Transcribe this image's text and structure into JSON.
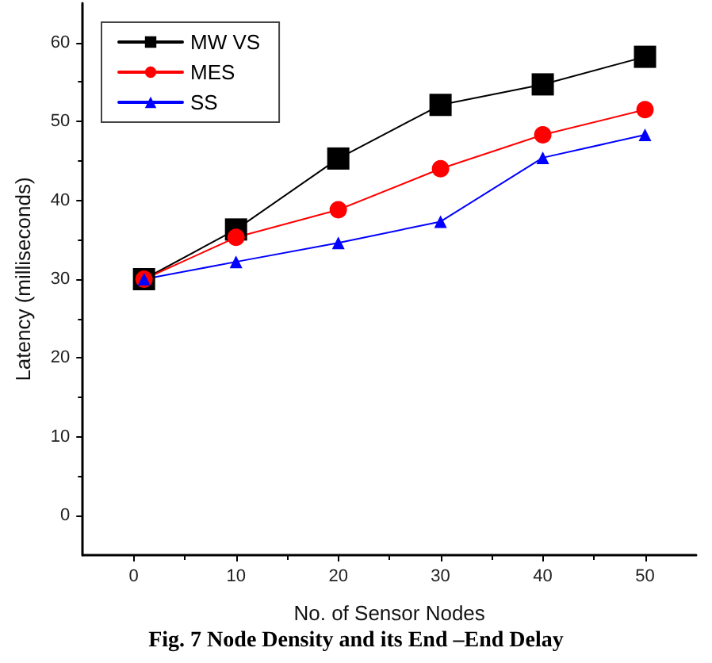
{
  "chart_data": {
    "type": "line",
    "title": "Fig. 7 Node Density and its End –End Delay",
    "xlabel": "No. of Sensor Nodes",
    "ylabel": "Latency (milliseconds)",
    "x": [
      1,
      10,
      20,
      30,
      40,
      50
    ],
    "series": [
      {
        "name": "MW VS",
        "color": "#000000",
        "marker": "square",
        "values": [
          30,
          36.3,
          45.3,
          52.1,
          54.7,
          58.2
        ]
      },
      {
        "name": "MES",
        "color": "#ff0000",
        "marker": "circle",
        "values": [
          30,
          35.3,
          38.8,
          44.0,
          48.3,
          51.5
        ]
      },
      {
        "name": "SS",
        "color": "#0000ff",
        "marker": "triangle",
        "values": [
          30,
          32.2,
          34.6,
          37.3,
          45.4,
          48.3
        ]
      }
    ],
    "xlim": [
      -5,
      55
    ],
    "xticks": [
      0,
      10,
      20,
      30,
      40,
      50
    ],
    "ylim": [
      -5,
      65
    ],
    "yticks": [
      0,
      10,
      20,
      30,
      40,
      50,
      60
    ],
    "grid": false,
    "legend": "top left",
    "line_style": "solid"
  }
}
